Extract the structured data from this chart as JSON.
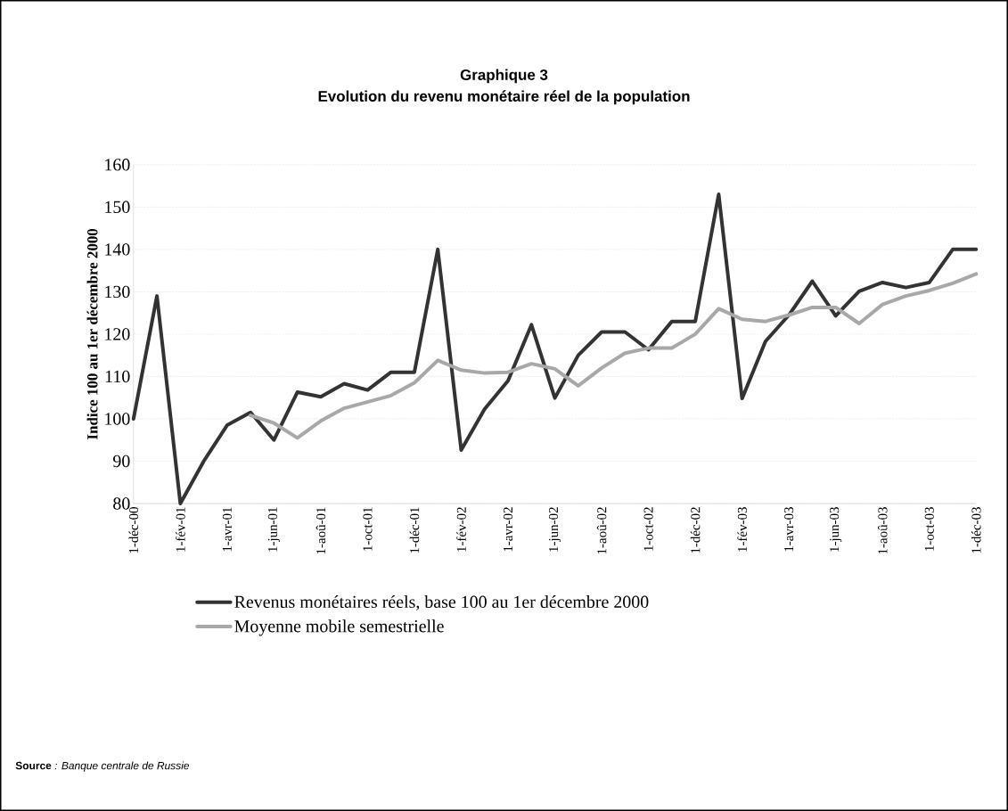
{
  "chart_data": {
    "type": "line",
    "title": "Graphique 3",
    "subtitle": "Evolution du revenu monétaire réel de la population",
    "ylabel": "Indice 100 au 1er décembre 2000",
    "categories": [
      "1-déc-00",
      null,
      "1-fév-01",
      null,
      "1-avr-01",
      null,
      "1-jun-01",
      null,
      "1-aoû-01",
      null,
      "1-oct-01",
      null,
      "1-déc-01",
      null,
      "1-fév-02",
      null,
      "1-avr-02",
      null,
      "1-jun-02",
      null,
      "1-aoû-02",
      null,
      "1-oct-02",
      null,
      "1-déc-02",
      null,
      "1-fév-03",
      null,
      "1-avr-03",
      null,
      "1-jun-03",
      null,
      "1-aoû-03",
      null,
      "1-oct-03",
      null,
      "1-déc-03"
    ],
    "series": [
      {
        "name": "Revenus monétaires réels, base 100 au 1er décembre 2000",
        "color": "#333333",
        "values": [
          100,
          129,
          80,
          90,
          98.5,
          101.5,
          95,
          106.3,
          105.2,
          108.3,
          106.8,
          111,
          111,
          140,
          92.6,
          102.3,
          109,
          122.2,
          104.9,
          115,
          120.5,
          120.5,
          116.3,
          123,
          123,
          153,
          104.8,
          118.3,
          124.5,
          132.5,
          124.3,
          130.1,
          132.2,
          131,
          132.2,
          140,
          140
        ]
      },
      {
        "name": "Moyenne mobile semestrielle",
        "color": "#a8a8a8",
        "values": [
          null,
          null,
          null,
          null,
          null,
          100.8,
          99,
          95.5,
          99.5,
          102.5,
          104,
          105.5,
          108.5,
          113.8,
          111.5,
          110.8,
          111,
          113,
          111.8,
          107.8,
          112,
          115.5,
          116.7,
          116.7,
          120,
          126,
          123.5,
          123,
          124.5,
          126.3,
          126.3,
          122.5,
          127,
          129,
          130.3,
          132,
          134.2
        ]
      }
    ],
    "ylim": [
      80,
      160
    ],
    "yticks": [
      80,
      90,
      100,
      110,
      120,
      130,
      140,
      150,
      160
    ],
    "grid": "y",
    "legend": "bottom",
    "marker": "none",
    "line_style": "solid",
    "annotations": [
      "**Source** *: Banque centrale de Russie*"
    ]
  }
}
